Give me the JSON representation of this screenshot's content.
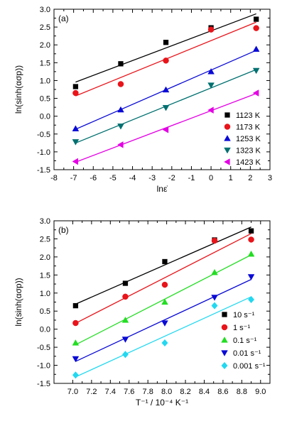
{
  "chart_data": [
    {
      "type": "scatter",
      "panel_label": "(a)",
      "xlabel": "lnε̇",
      "ylabel": "ln(sinh(ασp))",
      "xlim": [
        -8,
        3
      ],
      "ylim": [
        -1.5,
        3.0
      ],
      "xticks": [
        -8,
        -7,
        -6,
        -5,
        -4,
        -3,
        -2,
        -1,
        0,
        1,
        2,
        3
      ],
      "yticks": [
        -1.5,
        -1.0,
        -0.5,
        0.0,
        0.5,
        1.0,
        1.5,
        2.0,
        2.5,
        3.0
      ],
      "legend_position": "bottom-right",
      "fit_lines": true,
      "x": [
        -6.9,
        -4.6,
        -2.3,
        0.0,
        2.3
      ],
      "series": [
        {
          "name": "1123 K",
          "marker": "square",
          "color": "#000000",
          "values": [
            0.83,
            1.47,
            2.07,
            2.48,
            2.72
          ]
        },
        {
          "name": "1173 K",
          "marker": "circle",
          "color": "#e8141a",
          "values": [
            0.65,
            0.9,
            1.56,
            2.43,
            2.47
          ]
        },
        {
          "name": "1253 K",
          "marker": "triangle-up",
          "color": "#0a0ad6",
          "values": [
            -0.35,
            0.18,
            0.74,
            1.25,
            1.88
          ]
        },
        {
          "name": "1323 K",
          "marker": "triangle-down",
          "color": "#007070",
          "values": [
            -0.72,
            -0.28,
            0.24,
            0.87,
            1.28
          ]
        },
        {
          "name": "1423 K",
          "marker": "triangle-left",
          "color": "#e400e4",
          "values": [
            -1.27,
            -0.8,
            -0.38,
            0.17,
            0.65
          ]
        }
      ]
    },
    {
      "type": "scatter",
      "panel_label": "(b)",
      "xlabel": "T⁻¹ / 10⁻⁴ K⁻¹",
      "ylabel": "ln(sinh(ασp))",
      "xlim": [
        6.8,
        9.1
      ],
      "ylim": [
        -1.5,
        3.0
      ],
      "xticks": [
        7.0,
        7.2,
        7.4,
        7.6,
        7.8,
        8.0,
        8.2,
        8.4,
        8.6,
        8.8,
        9.0
      ],
      "yticks": [
        -1.5,
        -1.0,
        -0.5,
        0.0,
        0.5,
        1.0,
        1.5,
        2.0,
        2.5,
        3.0
      ],
      "legend_position": "bottom-right",
      "fit_lines": true,
      "x": [
        7.03,
        7.56,
        7.98,
        8.51,
        8.9
      ],
      "series": [
        {
          "name": "10 s⁻¹",
          "marker": "square",
          "color": "#000000",
          "values": [
            0.65,
            1.27,
            1.87,
            2.47,
            2.72
          ]
        },
        {
          "name": "1 s⁻¹",
          "marker": "circle",
          "color": "#e8141a",
          "values": [
            0.17,
            0.9,
            1.23,
            2.45,
            2.48
          ]
        },
        {
          "name": "0.1 s⁻¹",
          "marker": "triangle-up",
          "color": "#22dd22",
          "values": [
            -0.38,
            0.25,
            0.75,
            1.57,
            2.08
          ]
        },
        {
          "name": "0.01 s⁻¹",
          "marker": "triangle-down",
          "color": "#0a0ad6",
          "values": [
            -0.82,
            -0.28,
            0.17,
            0.88,
            1.45
          ]
        },
        {
          "name": "0.001 s⁻¹",
          "marker": "diamond",
          "color": "#22d8f0",
          "values": [
            -1.27,
            -0.7,
            -0.38,
            0.65,
            0.82
          ]
        }
      ]
    }
  ]
}
